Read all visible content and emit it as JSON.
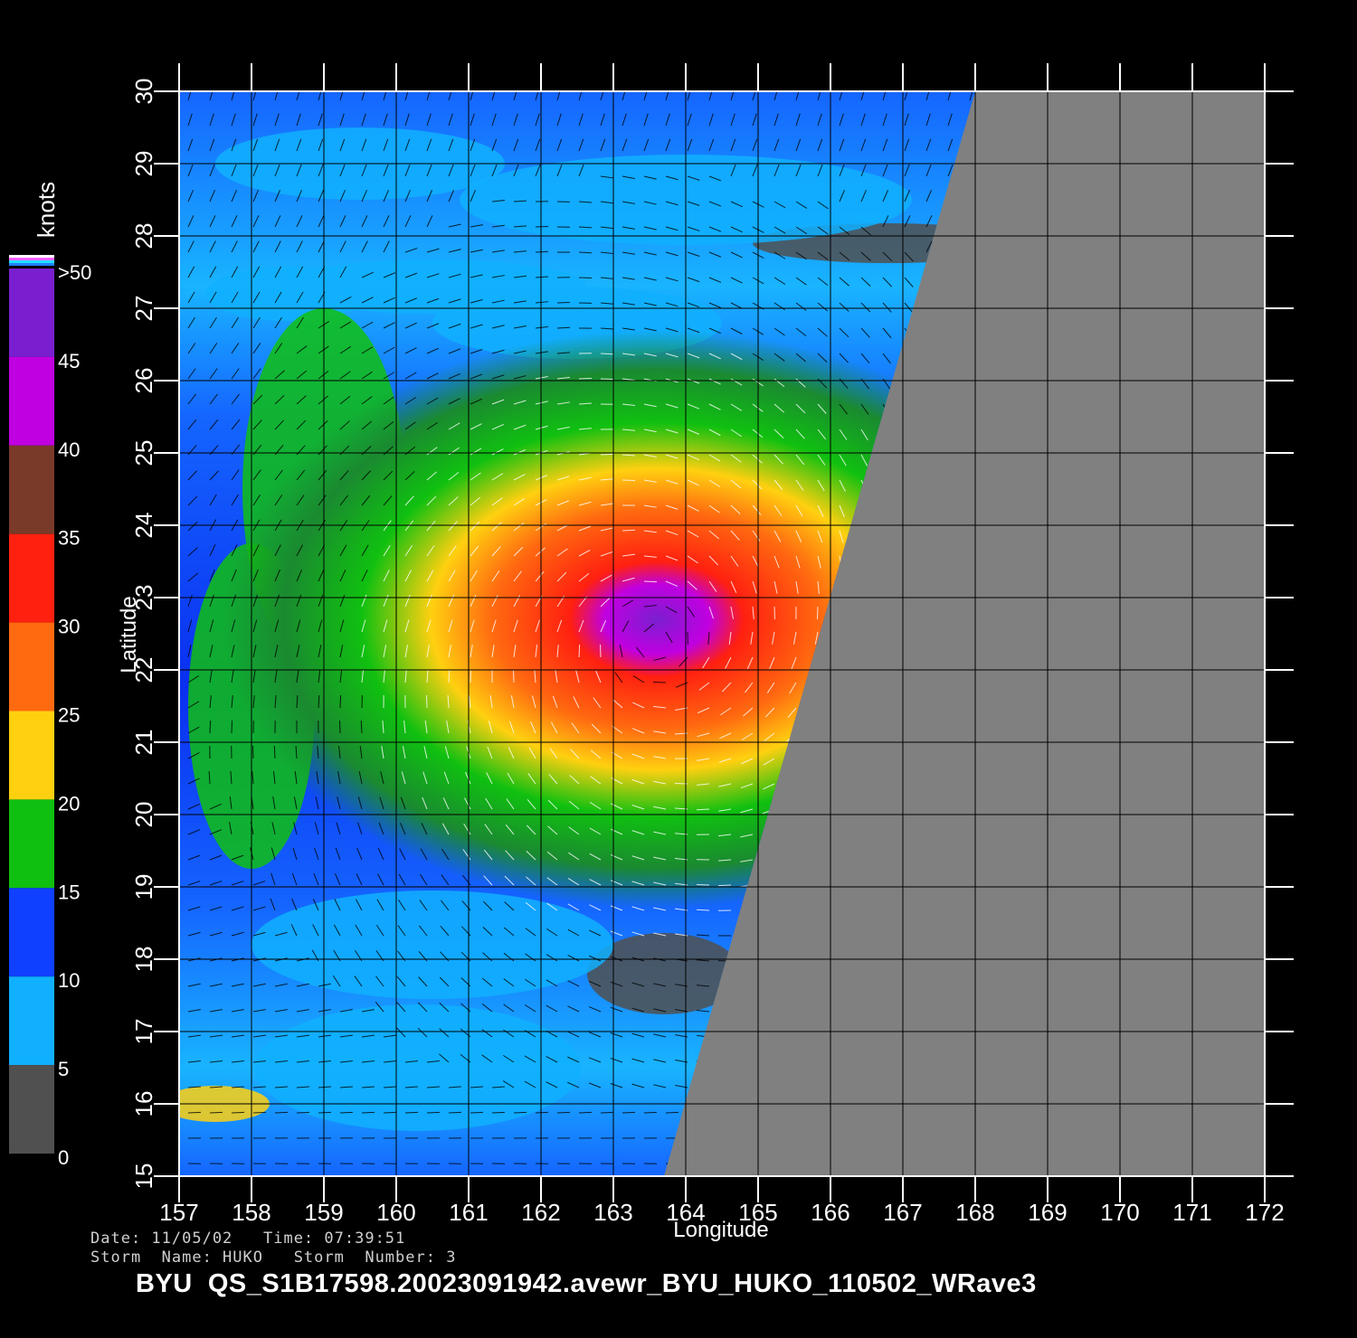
{
  "map": {
    "x_axis_label": "Longitude",
    "y_axis_label": "Latitude",
    "lon_ticks": [
      "157",
      "158",
      "159",
      "160",
      "161",
      "162",
      "163",
      "164",
      "165",
      "166",
      "167",
      "168",
      "169",
      "170",
      "171",
      "172"
    ],
    "lat_ticks": [
      "15",
      "16",
      "17",
      "18",
      "19",
      "20",
      "21",
      "22",
      "23",
      "24",
      "25",
      "26",
      "27",
      "28",
      "29",
      "30"
    ],
    "lon_range": [
      157,
      172
    ],
    "lat_range": [
      15,
      30
    ],
    "storm_center": {
      "lon": 163.6,
      "lat": 22.4
    },
    "swath_edge": {
      "lon_at_lat15": 163.7,
      "lon_at_lat30": 168.0
    },
    "grid": true
  },
  "colorbar": {
    "title": "knots",
    "labels": [
      ">50",
      "45",
      "40",
      "35",
      "30",
      "25",
      "20",
      "15",
      "10",
      "5",
      "0"
    ],
    "bands": [
      {
        "from": 45,
        "to": 50,
        "color": "#7a1fd0"
      },
      {
        "from": 40,
        "to": 45,
        "color": "#c000e0"
      },
      {
        "from": 35,
        "to": 40,
        "color": "#7a3a2a"
      },
      {
        "from": 30,
        "to": 35,
        "color": "#ff2010"
      },
      {
        "from": 25,
        "to": 30,
        "color": "#ff6a10"
      },
      {
        "from": 20,
        "to": 25,
        "color": "#ffd010"
      },
      {
        "from": 15,
        "to": 20,
        "color": "#10c010"
      },
      {
        "from": 10,
        "to": 15,
        "color": "#1040ff"
      },
      {
        "from": 5,
        "to": 10,
        "color": "#10b0ff"
      },
      {
        "from": 0,
        "to": 5,
        "color": "#505050"
      }
    ]
  },
  "colors": {
    "land_no_data": "#808080",
    "background": "#000000",
    "grid": "#000000",
    "wind_vectors": "#000000",
    "high_wind_vectors": "#ffffff"
  },
  "footer": {
    "line1": "Date: 11/05/02   Time: 07:39:51",
    "line2": "Storm  Name: HUKO   Storm  Number: 3",
    "title": "BYU  QS_S1B17598.20023091942.avewr_BYU_HUKO_110502_WRave3"
  }
}
